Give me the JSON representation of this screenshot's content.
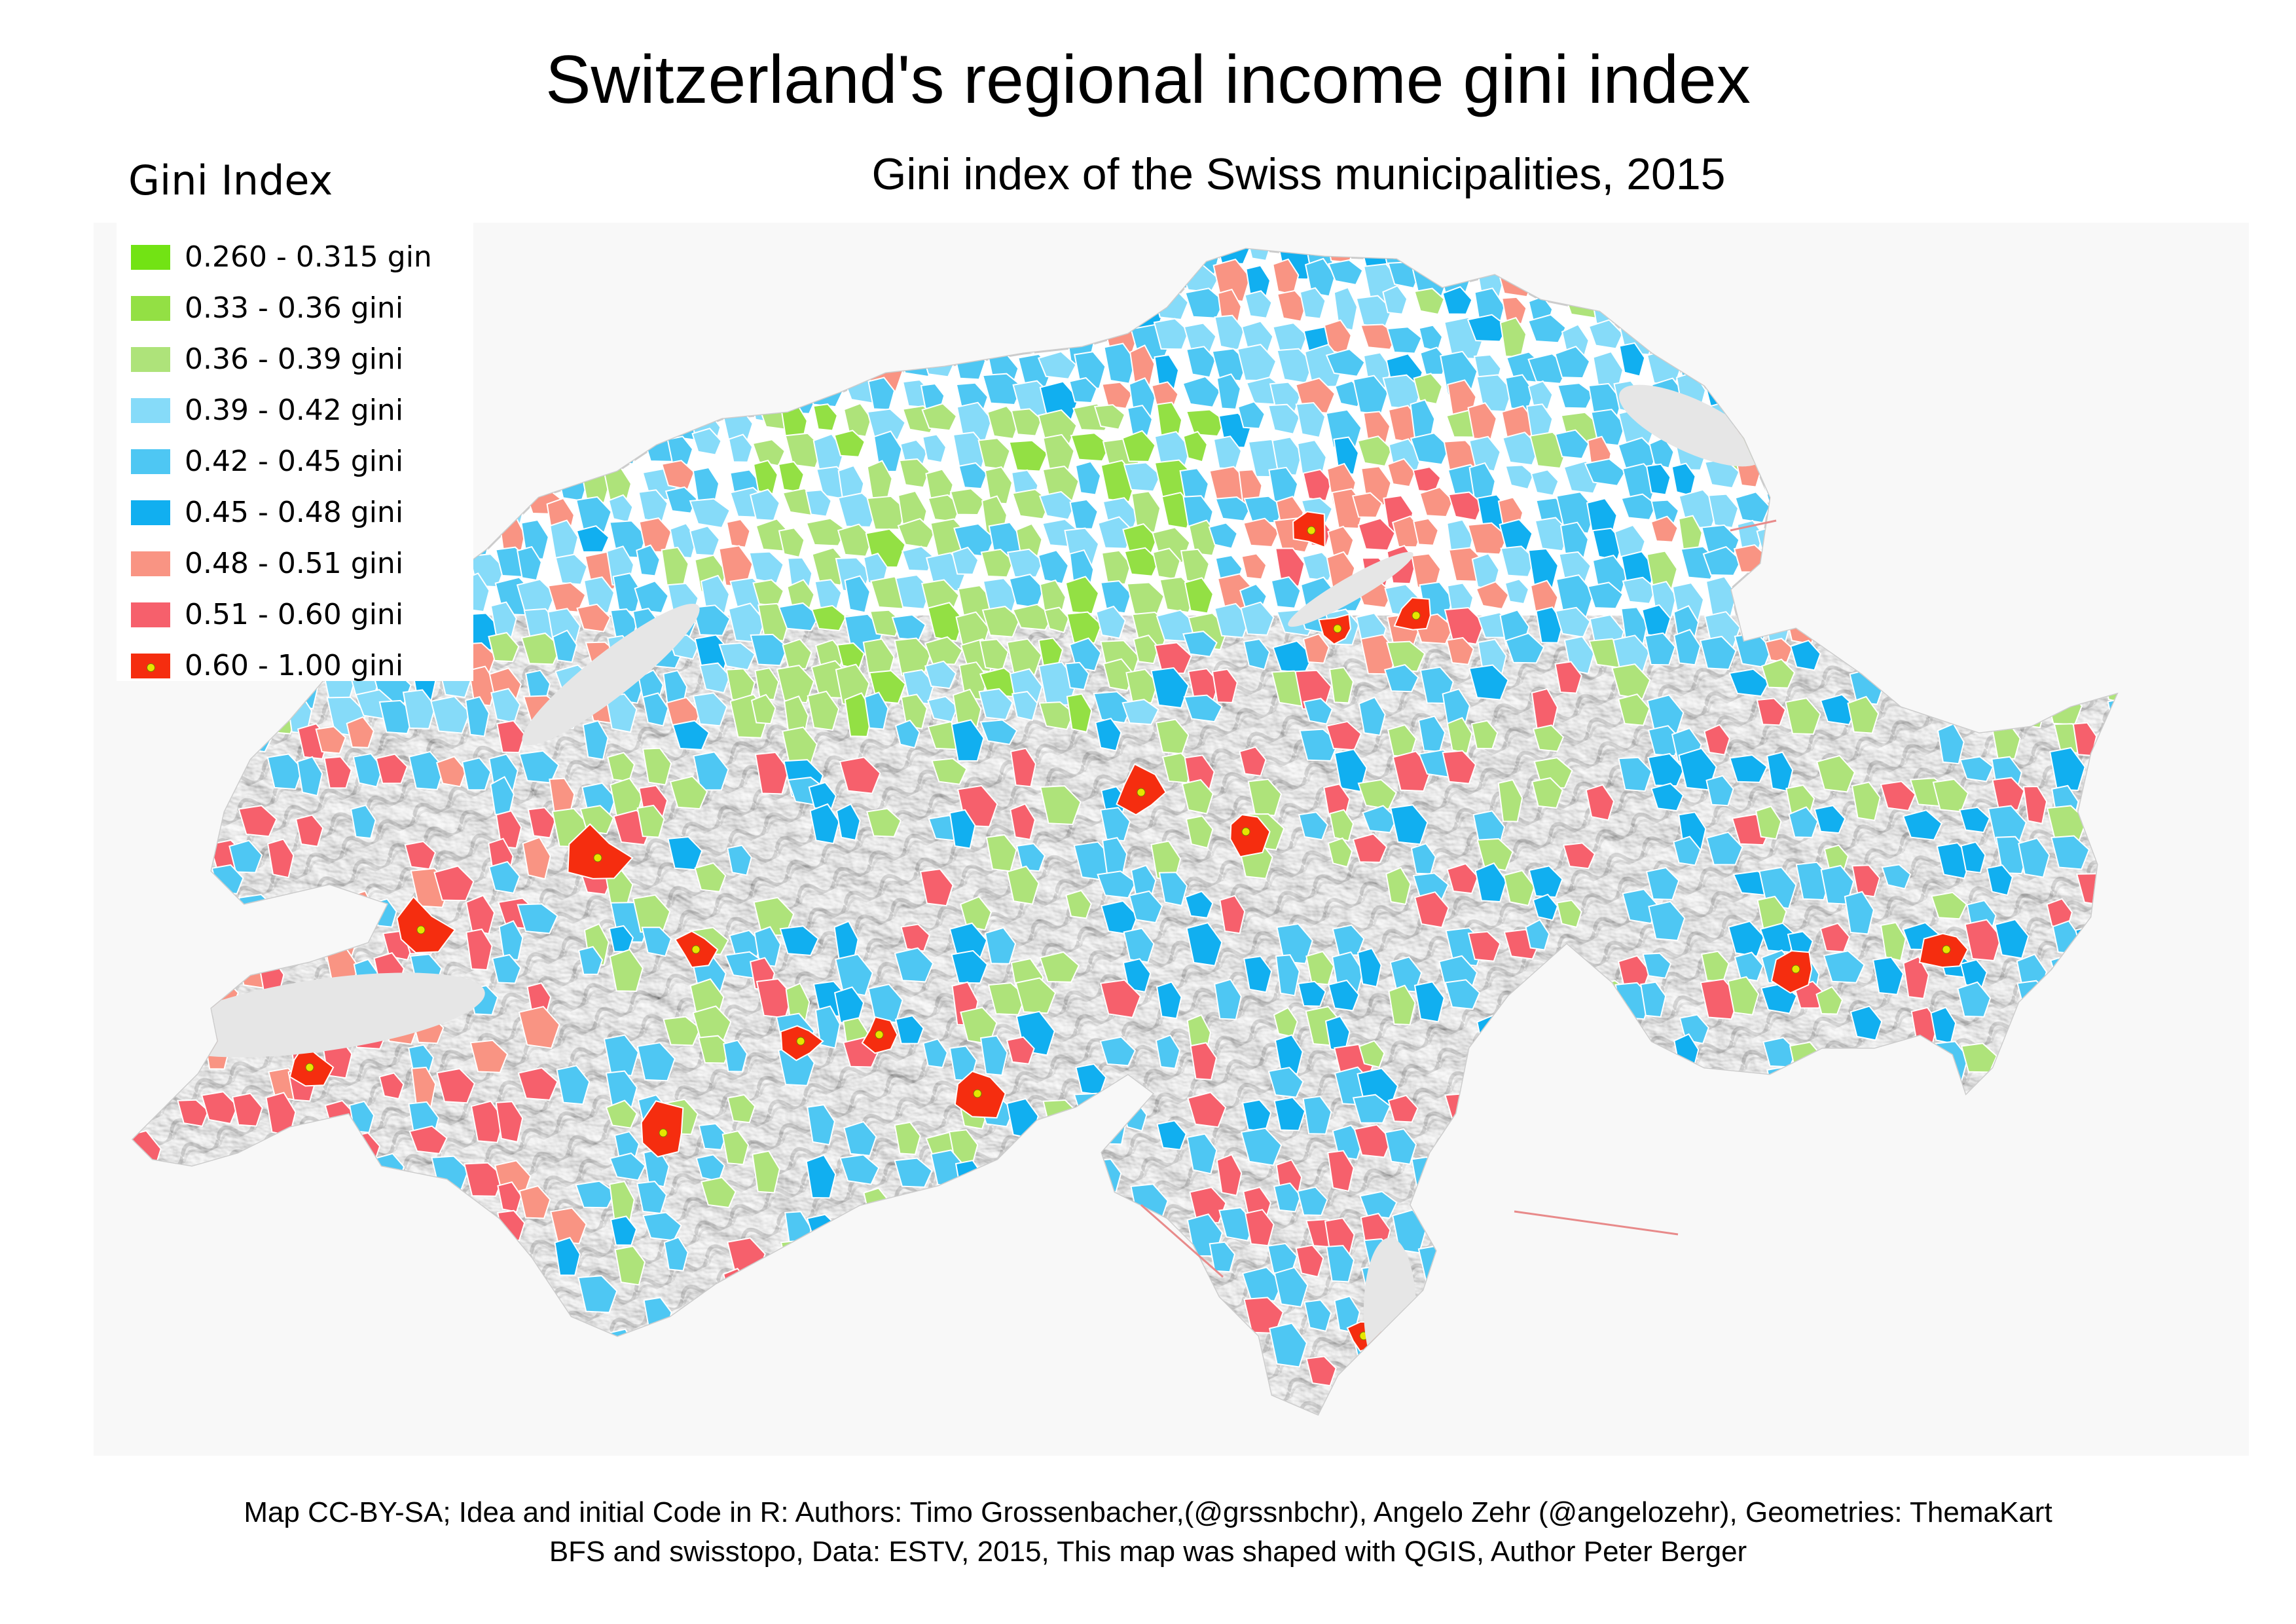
{
  "title": "Switzerland's regional income gini index",
  "subtitle": "Gini index of the Swiss municipalities, 2015",
  "legend": {
    "title": "Gini Index",
    "position": "top-left",
    "items": [
      {
        "label": "0.260 - 0.315 gin",
        "color": "#72e314",
        "marker": false
      },
      {
        "label": "0.33 - 0.36 gini",
        "color": "#93e044",
        "marker": false
      },
      {
        "label": "0.36 - 0.39 gini",
        "color": "#aee37a",
        "marker": false
      },
      {
        "label": "0.39 - 0.42 gini",
        "color": "#86dbf9",
        "marker": false
      },
      {
        "label": "0.42 - 0.45 gini",
        "color": "#4ec7f3",
        "marker": false
      },
      {
        "label": "0.45 - 0.48 gini",
        "color": "#11aff0",
        "marker": false
      },
      {
        "label": "0.48 - 0.51 gini",
        "color": "#f99483",
        "marker": false
      },
      {
        "label": "0.51 - 0.60 gini",
        "color": "#f6606c",
        "marker": true,
        "marker_hidden": true
      },
      {
        "label": "0.60 - 1.00 gini",
        "color": "#f52d0f",
        "marker": true,
        "marker_color": "#e6e600"
      }
    ]
  },
  "credits": {
    "line1": "Map CC-BY-SA; Idea and initial Code in R: Authors: Timo Grossenbacher,(@grssnbchr), Angelo Zehr (@angelozehr), Geometries: ThemaKart",
    "line2": "BFS and swisstopo, Data: ESTV, 2015, This map was shaped with QGIS, Author Peter Berger"
  },
  "map": {
    "country": "Switzerland",
    "background_color": "#f8f8f8",
    "relief_color": "#ffffff",
    "relief_shadow_color": "#9a9a9a",
    "lake_color": "#e6e6e6"
  }
}
